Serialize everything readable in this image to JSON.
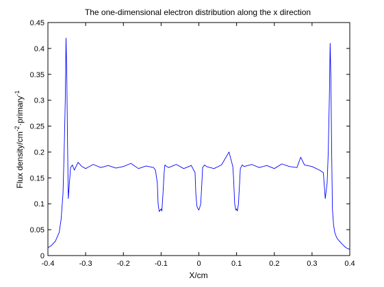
{
  "chart_data": {
    "type": "line",
    "title": "The one-dimensional electron distribution along the x direction",
    "xlabel": "X/cm",
    "ylabel": {
      "base": "Flux density/cm",
      "sup1": "-2",
      "mid": "·primary",
      "sup2": "-1"
    },
    "xlim": [
      -0.4,
      0.4
    ],
    "ylim": [
      0,
      0.45
    ],
    "xticks": [
      "-0.4",
      "-0.3",
      "-0.2",
      "-0.1",
      "0",
      "0.1",
      "0.2",
      "0.3",
      "0.4"
    ],
    "yticks": [
      "0",
      "0.05",
      "0.1",
      "0.15",
      "0.2",
      "0.25",
      "0.3",
      "0.35",
      "0.4",
      "0.45"
    ],
    "grid": false,
    "series": [
      {
        "color": "#0000ff",
        "x": [
          -0.4,
          -0.39,
          -0.38,
          -0.37,
          -0.365,
          -0.36,
          -0.357,
          -0.354,
          -0.352,
          -0.35,
          -0.348,
          -0.346,
          -0.343,
          -0.34,
          -0.335,
          -0.33,
          -0.32,
          -0.31,
          -0.3,
          -0.28,
          -0.26,
          -0.24,
          -0.22,
          -0.2,
          -0.18,
          -0.16,
          -0.14,
          -0.12,
          -0.115,
          -0.11,
          -0.108,
          -0.105,
          -0.102,
          -0.1,
          -0.098,
          -0.095,
          -0.092,
          -0.09,
          -0.085,
          -0.08,
          -0.06,
          -0.04,
          -0.02,
          -0.01,
          -0.008,
          -0.005,
          -0.002,
          0,
          0.002,
          0.005,
          0.008,
          0.01,
          0.015,
          0.02,
          0.04,
          0.06,
          0.08,
          0.09,
          0.092,
          0.095,
          0.098,
          0.1,
          0.102,
          0.105,
          0.108,
          0.11,
          0.115,
          0.12,
          0.14,
          0.16,
          0.18,
          0.2,
          0.22,
          0.24,
          0.26,
          0.27,
          0.28,
          0.3,
          0.32,
          0.33,
          0.335,
          0.34,
          0.343,
          0.346,
          0.348,
          0.35,
          0.352,
          0.354,
          0.357,
          0.36,
          0.365,
          0.37,
          0.38,
          0.39,
          0.4
        ],
        "y": [
          0.015,
          0.02,
          0.028,
          0.045,
          0.07,
          0.12,
          0.2,
          0.3,
          0.42,
          0.35,
          0.22,
          0.11,
          0.14,
          0.17,
          0.175,
          0.165,
          0.18,
          0.172,
          0.168,
          0.176,
          0.17,
          0.174,
          0.169,
          0.172,
          0.178,
          0.168,
          0.173,
          0.17,
          0.165,
          0.14,
          0.1,
          0.085,
          0.088,
          0.09,
          0.086,
          0.12,
          0.16,
          0.175,
          0.172,
          0.17,
          0.176,
          0.168,
          0.174,
          0.16,
          0.12,
          0.095,
          0.09,
          0.088,
          0.092,
          0.1,
          0.14,
          0.17,
          0.175,
          0.172,
          0.168,
          0.175,
          0.2,
          0.172,
          0.15,
          0.1,
          0.088,
          0.09,
          0.086,
          0.1,
          0.14,
          0.168,
          0.175,
          0.172,
          0.176,
          0.17,
          0.174,
          0.168,
          0.177,
          0.172,
          0.17,
          0.19,
          0.175,
          0.172,
          0.165,
          0.16,
          0.11,
          0.14,
          0.2,
          0.31,
          0.41,
          0.34,
          0.2,
          0.09,
          0.06,
          0.045,
          0.035,
          0.03,
          0.022,
          0.015,
          0.012
        ]
      }
    ]
  }
}
